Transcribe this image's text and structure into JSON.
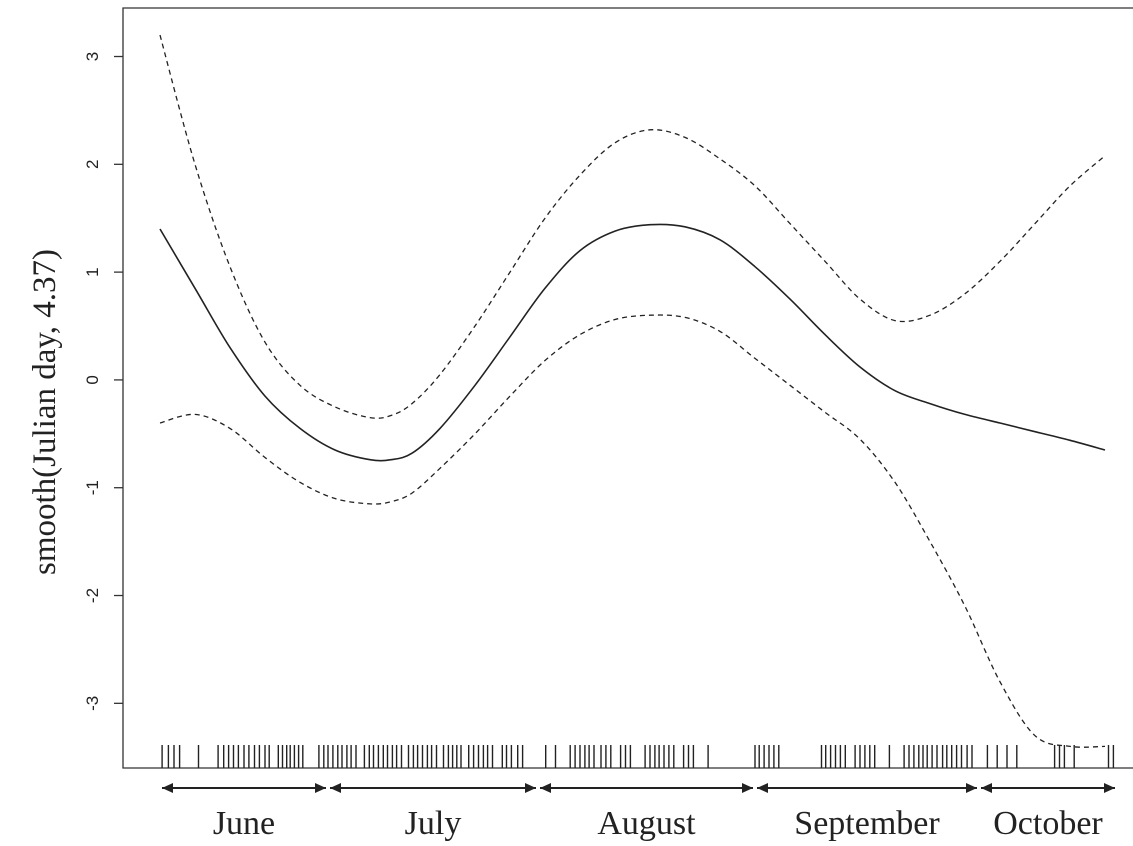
{
  "chart_data": {
    "type": "line",
    "title": "",
    "ylabel": "smooth(Julian day, 4.37)",
    "xlabel": "",
    "ylim": [
      -3.6,
      3.45
    ],
    "xlim": [
      0,
      138
    ],
    "yticks": [
      3,
      2,
      1,
      0,
      -1,
      -2,
      -3
    ],
    "ytick_labels": [
      "3",
      "2",
      "1",
      "0",
      "-1",
      "-2",
      "-3"
    ],
    "grid": false,
    "series": [
      {
        "role": "fit",
        "style": "solid",
        "x": [
          0,
          5,
          10,
          15,
          20,
          25,
          30,
          33,
          36,
          40,
          45,
          50,
          55,
          60,
          65,
          70,
          75,
          80,
          85,
          90,
          95,
          100,
          105,
          110,
          115,
          120,
          125,
          130,
          135
        ],
        "y": [
          1.4,
          0.85,
          0.3,
          -0.15,
          -0.45,
          -0.65,
          -0.74,
          -0.74,
          -0.68,
          -0.45,
          -0.05,
          0.4,
          0.85,
          1.2,
          1.38,
          1.44,
          1.42,
          1.3,
          1.05,
          0.75,
          0.42,
          0.12,
          -0.1,
          -0.22,
          -0.32,
          -0.4,
          -0.48,
          -0.56,
          -0.65
        ]
      },
      {
        "role": "upper",
        "style": "dashed",
        "x": [
          0,
          5,
          10,
          15,
          20,
          25,
          30,
          33,
          36,
          40,
          45,
          50,
          55,
          60,
          65,
          70,
          75,
          80,
          85,
          90,
          95,
          100,
          105,
          110,
          115,
          120,
          125,
          130,
          135
        ],
        "y": [
          3.2,
          2.0,
          1.05,
          0.35,
          -0.05,
          -0.25,
          -0.35,
          -0.33,
          -0.22,
          0.05,
          0.5,
          1.0,
          1.5,
          1.9,
          2.2,
          2.32,
          2.25,
          2.05,
          1.8,
          1.45,
          1.1,
          0.75,
          0.55,
          0.6,
          0.8,
          1.1,
          1.45,
          1.8,
          2.08
        ]
      },
      {
        "role": "lower",
        "style": "dashed",
        "x": [
          0,
          5,
          10,
          15,
          20,
          25,
          30,
          33,
          36,
          40,
          45,
          50,
          55,
          60,
          65,
          70,
          75,
          80,
          85,
          90,
          95,
          100,
          105,
          110,
          115,
          120,
          125,
          130,
          135
        ],
        "y": [
          -0.4,
          -0.32,
          -0.45,
          -0.72,
          -0.95,
          -1.1,
          -1.15,
          -1.13,
          -1.05,
          -0.82,
          -0.5,
          -0.15,
          0.18,
          0.42,
          0.56,
          0.6,
          0.58,
          0.45,
          0.2,
          -0.05,
          -0.3,
          -0.55,
          -0.95,
          -1.5,
          -2.1,
          -2.8,
          -3.3,
          -3.4,
          -3.4
        ]
      }
    ],
    "rug_x": [
      0.3,
      1.2,
      2.0,
      2.8,
      5.5,
      8.3,
      9.1,
      9.8,
      10.5,
      11.2,
      12.0,
      12.7,
      13.5,
      14.2,
      15.0,
      15.6,
      16.9,
      17.5,
      18.1,
      18.6,
      19.2,
      19.8,
      20.4,
      22.7,
      23.4,
      24.0,
      24.7,
      25.4,
      26.0,
      26.7,
      27.3,
      28.0,
      29.2,
      29.9,
      30.5,
      31.2,
      31.9,
      32.5,
      33.2,
      33.8,
      34.5,
      35.5,
      36.2,
      36.8,
      37.5,
      38.2,
      38.8,
      39.5,
      40.5,
      41.2,
      41.8,
      42.4,
      43.0,
      44.1,
      44.8,
      45.5,
      46.2,
      46.8,
      47.5,
      48.9,
      49.5,
      50.2,
      51.1,
      51.8,
      55.1,
      56.5,
      58.6,
      59.3,
      60.0,
      60.7,
      61.3,
      62.0,
      63.0,
      63.7,
      64.4,
      65.8,
      66.5,
      67.2,
      69.3,
      70.0,
      70.7,
      71.3,
      72.0,
      72.7,
      73.4,
      74.8,
      75.5,
      76.2,
      78.3,
      85.0,
      85.6,
      86.3,
      87.0,
      87.7,
      88.4,
      94.5,
      95.1,
      95.8,
      96.5,
      97.2,
      97.9,
      99.3,
      100.0,
      100.7,
      101.4,
      102.1,
      104.2,
      106.3,
      107.0,
      107.7,
      108.4,
      109.0,
      109.6,
      110.3,
      111.0,
      111.8,
      112.4,
      113.1,
      113.8,
      114.5,
      115.3,
      116.0,
      118.2,
      119.6,
      121.0,
      122.4,
      127.8,
      128.5,
      129.2,
      130.6,
      135.5,
      136.2
    ],
    "months": [
      {
        "label": "June",
        "start": 0,
        "end": 24
      },
      {
        "label": "July",
        "start": 24,
        "end": 54
      },
      {
        "label": "August",
        "start": 54,
        "end": 85
      },
      {
        "label": "September",
        "start": 85,
        "end": 117
      },
      {
        "label": "October",
        "start": 117,
        "end": 139
      }
    ]
  }
}
